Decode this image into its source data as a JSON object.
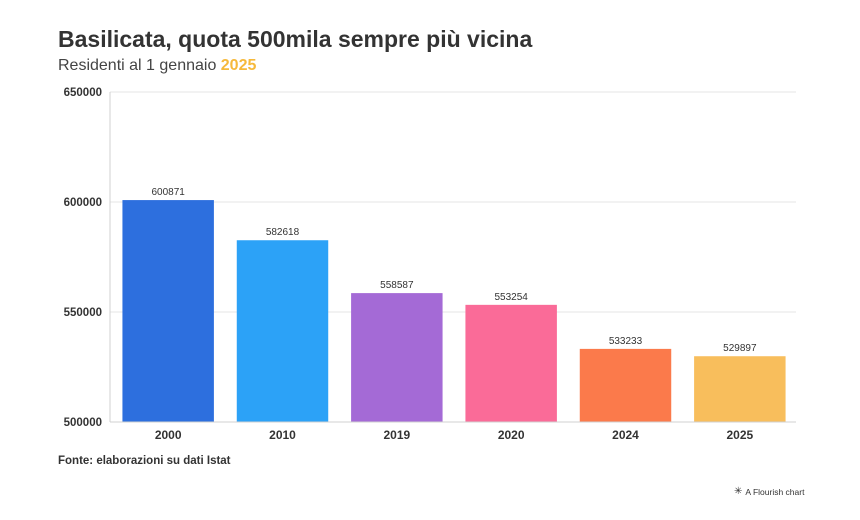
{
  "header": {
    "title": "Basilicata, quota 500mila sempre più vicina",
    "subtitle_prefix": "Residenti al 1 gennaio ",
    "subtitle_year": "2025",
    "subtitle_year_color": "#f6b93b"
  },
  "footer": {
    "source": "Fonte: elaborazioni su dati Istat",
    "credit": "A Flourish chart",
    "credit_icon": "flourish-star-icon"
  },
  "chart_data": {
    "type": "bar",
    "title": "Basilicata, quota 500mila sempre più vicina",
    "subtitle": "Residenti al 1 gennaio 2025",
    "categories": [
      "2000",
      "2010",
      "2019",
      "2020",
      "2024",
      "2025"
    ],
    "values": [
      600871,
      582618,
      558587,
      553254,
      533233,
      529897
    ],
    "colors": [
      "#2d6fde",
      "#2ca2f7",
      "#a46ad6",
      "#fa6b98",
      "#fb7a4b",
      "#f8be5c"
    ],
    "ylim": [
      500000,
      650000
    ],
    "yticks": [
      500000,
      550000,
      600000,
      650000
    ],
    "ytick_labels": [
      "500000",
      "550000",
      "600000",
      "650000"
    ],
    "xlabel": "",
    "ylabel": "",
    "grid": true,
    "data_labels": true
  }
}
